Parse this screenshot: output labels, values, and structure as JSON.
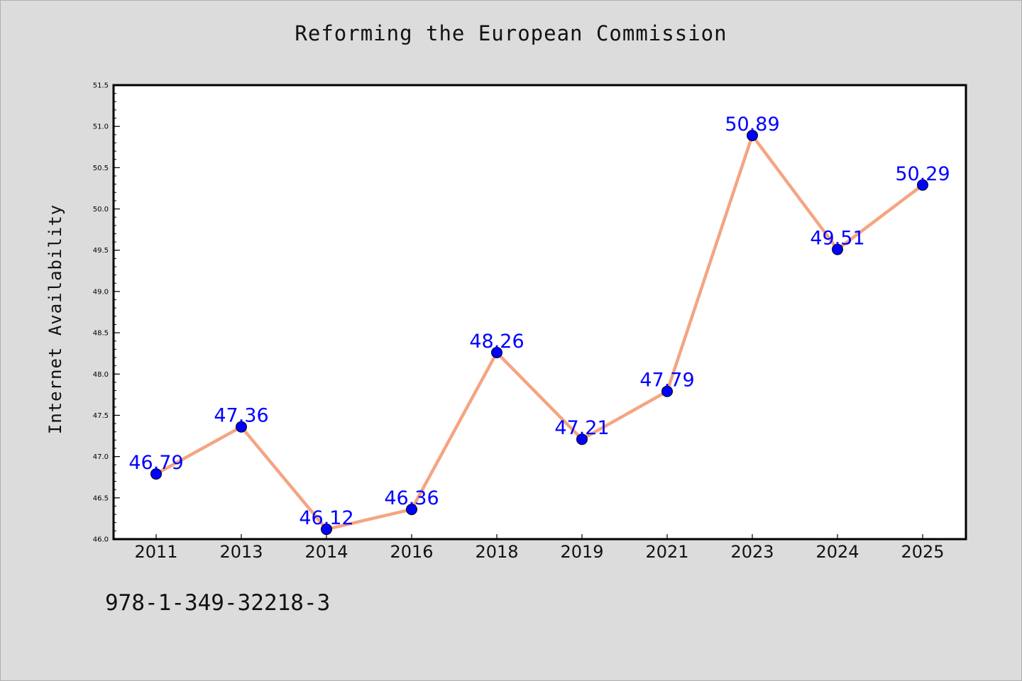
{
  "colors": {
    "background": "#dcdcdc",
    "plot_background": "#ffffff",
    "line": "#f4a582",
    "marker": "#0000ff",
    "label": "#0000ff"
  },
  "footer_text": "978-1-349-32218-3",
  "chart_data": {
    "type": "line",
    "title": "Reforming the European Commission",
    "xlabel": "",
    "ylabel": "Internet Availability",
    "categories": [
      "2011",
      "2013",
      "2014",
      "2016",
      "2018",
      "2019",
      "2021",
      "2023",
      "2024",
      "2025"
    ],
    "series": [
      {
        "values": [
          46.79,
          47.36,
          46.12,
          46.36,
          48.26,
          47.21,
          47.79,
          50.89,
          49.51,
          50.29
        ],
        "labels": [
          "46.79",
          "47.36",
          "46.12",
          "46.36",
          "48.26",
          "47.21",
          "47.79",
          "50.89",
          "49.51",
          "50.29"
        ]
      }
    ],
    "ylim": [
      46.0,
      51.5
    ],
    "yticks": [
      "46.0",
      "46.5",
      "47.0",
      "47.5",
      "48.0",
      "48.5",
      "49.0",
      "49.5",
      "50.0",
      "50.5",
      "51.0",
      "51.5"
    ],
    "grid": false,
    "legend": "none"
  }
}
